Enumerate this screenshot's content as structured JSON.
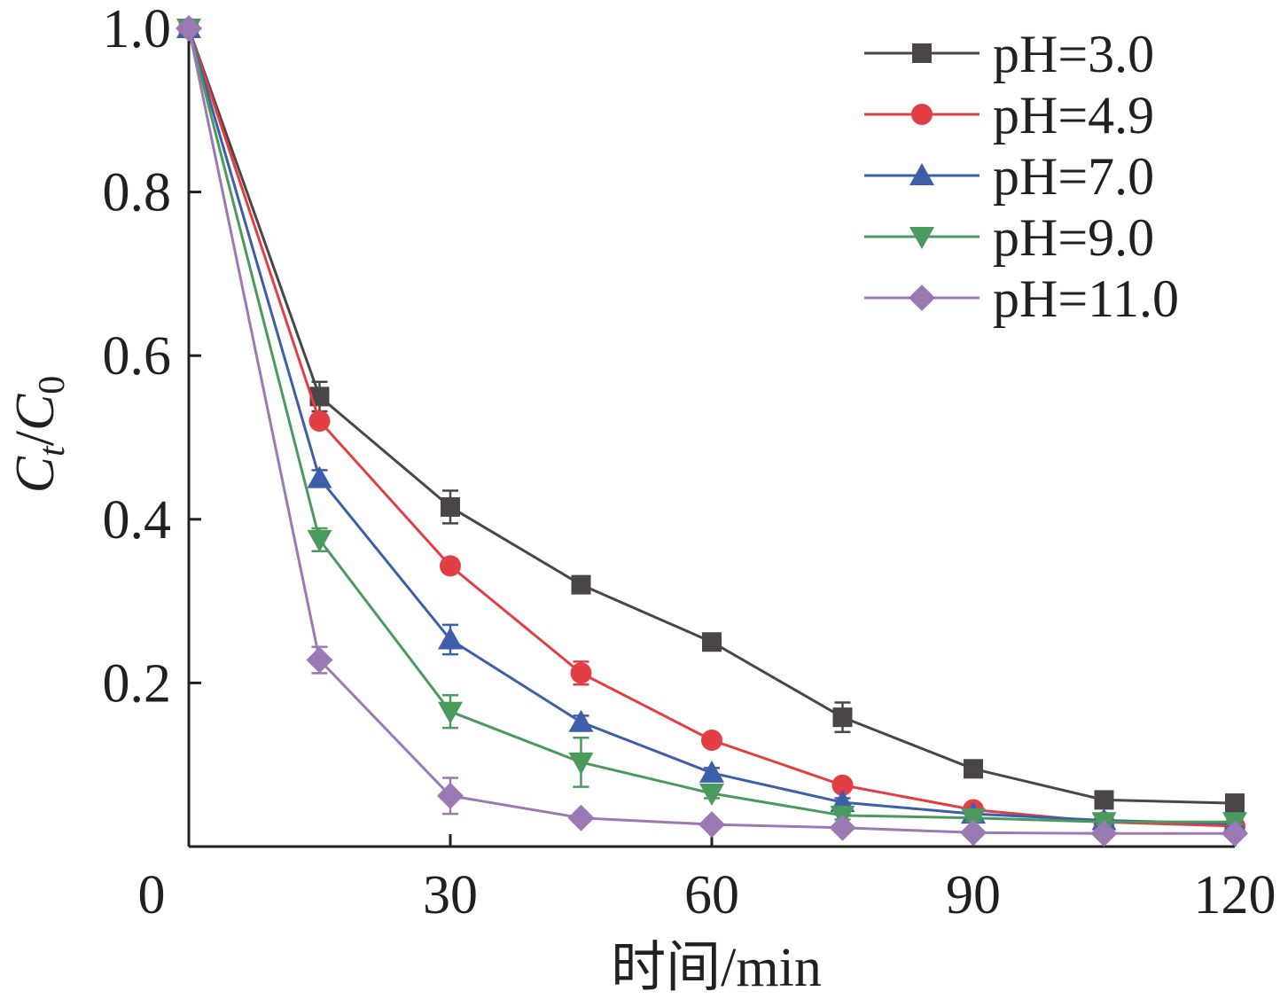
{
  "chart_data": {
    "type": "line",
    "xlabel": "时间/min",
    "ylabel_main": "C",
    "ylabel_sub_t": "t",
    "ylabel_sep": "/",
    "ylabel_main2": "C",
    "ylabel_sub_0": "0",
    "xlim": [
      0,
      120
    ],
    "ylim": [
      0,
      1.0
    ],
    "x_ticks": [
      0,
      30,
      60,
      90,
      120
    ],
    "x_tick_labels": [
      "0",
      "30",
      "60",
      "90",
      "120"
    ],
    "y_ticks": [
      0.2,
      0.4,
      0.6,
      0.8,
      1.0
    ],
    "y_tick_labels": [
      "0.2",
      "0.4",
      "0.6",
      "0.8",
      "1.0"
    ],
    "grid": false,
    "legend_position": "top-right",
    "x": [
      0,
      15,
      30,
      45,
      60,
      75,
      90,
      105,
      120
    ],
    "series": [
      {
        "name": "pH=3.0",
        "color": "#4a4546",
        "marker": "square",
        "values": [
          1.0,
          0.55,
          0.415,
          0.32,
          0.25,
          0.158,
          0.095,
          0.057,
          0.053
        ],
        "errors": [
          0,
          0.018,
          0.02,
          0.008,
          0.008,
          0.018,
          0.006,
          0.005,
          0.005
        ]
      },
      {
        "name": "pH=4.9",
        "color": "#e23f44",
        "marker": "circle",
        "values": [
          1.0,
          0.52,
          0.343,
          0.212,
          0.13,
          0.075,
          0.045,
          0.03,
          0.025
        ],
        "errors": [
          0,
          0.008,
          0.008,
          0.014,
          0.006,
          0.006,
          0.004,
          0.003,
          0.003
        ]
      },
      {
        "name": "pH=7.0",
        "color": "#3d5ea8",
        "marker": "triangle-up",
        "values": [
          1.0,
          0.45,
          0.253,
          0.152,
          0.09,
          0.054,
          0.04,
          0.032,
          0.028
        ],
        "errors": [
          0,
          0.01,
          0.018,
          0.008,
          0.006,
          0.005,
          0.004,
          0.003,
          0.003
        ]
      },
      {
        "name": "pH=9.0",
        "color": "#4a9a5e",
        "marker": "triangle-down",
        "values": [
          1.0,
          0.375,
          0.165,
          0.103,
          0.065,
          0.038,
          0.035,
          0.03,
          0.03
        ],
        "errors": [
          0,
          0.014,
          0.02,
          0.03,
          0.006,
          0.005,
          0.004,
          0.003,
          0.003
        ]
      },
      {
        "name": "pH=11.0",
        "color": "#9b79b4",
        "marker": "diamond",
        "values": [
          1.0,
          0.228,
          0.062,
          0.035,
          0.027,
          0.023,
          0.017,
          0.016,
          0.016
        ],
        "errors": [
          0,
          0.016,
          0.022,
          0.005,
          0.004,
          0.004,
          0.003,
          0.003,
          0.003
        ]
      }
    ]
  }
}
